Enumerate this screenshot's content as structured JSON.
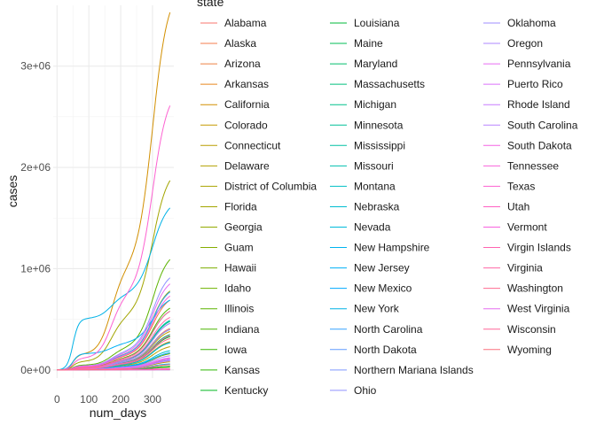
{
  "chart_data": {
    "type": "line",
    "title": "",
    "xlabel": "num_days",
    "ylabel": "cases",
    "xlim": [
      -12,
      367
    ],
    "ylim": [
      -80000,
      3600000
    ],
    "x_ticks": [
      0,
      100,
      200,
      300
    ],
    "x_tick_labels": [
      "0",
      "100",
      "200",
      "300"
    ],
    "y_ticks": [
      0,
      1000000,
      2000000,
      3000000
    ],
    "y_tick_labels": [
      "0e+00",
      "1e+06",
      "2e+06",
      "3e+06"
    ],
    "grid": true,
    "legend_title": "state",
    "legend_position": "right",
    "legend_columns": 3,
    "series": [
      {
        "name": "Alabama",
        "color": "#F8766D",
        "final": 410000
      },
      {
        "name": "Alaska",
        "color": "#F47D4C",
        "final": 52000
      },
      {
        "name": "Arizona",
        "color": "#EE8044",
        "final": 690000
      },
      {
        "name": "Arkansas",
        "color": "#E6861F",
        "final": 280000
      },
      {
        "name": "California",
        "color": "#D28F00",
        "final": 3530000
      },
      {
        "name": "Colorado",
        "color": "#C59900",
        "final": 380000
      },
      {
        "name": "Connecticut",
        "color": "#B99E00",
        "final": 230000
      },
      {
        "name": "Delaware",
        "color": "#B2A100",
        "final": 80000
      },
      {
        "name": "District of Columbia",
        "color": "#AAA300",
        "final": 35000
      },
      {
        "name": "Florida",
        "color": "#A3A500",
        "final": 1870000
      },
      {
        "name": "Georgia",
        "color": "#93AA00",
        "final": 780000
      },
      {
        "name": "Guam",
        "color": "#86AD00",
        "final": 8000
      },
      {
        "name": "Hawaii",
        "color": "#7CAE00",
        "final": 26000
      },
      {
        "name": "Idaho",
        "color": "#6EB200",
        "final": 160000
      },
      {
        "name": "Illinois",
        "color": "#5BB300",
        "final": 1090000
      },
      {
        "name": "Indiana",
        "color": "#4CB600",
        "final": 610000
      },
      {
        "name": "Iowa",
        "color": "#39B600",
        "final": 330000
      },
      {
        "name": "Kansas",
        "color": "#2DB600",
        "final": 270000
      },
      {
        "name": "Kentucky",
        "color": "#00B81F",
        "final": 330000
      },
      {
        "name": "Louisiana",
        "color": "#00BA38",
        "final": 400000
      },
      {
        "name": "Maine",
        "color": "#00BC56",
        "final": 35000
      },
      {
        "name": "Maryland",
        "color": "#00BE6C",
        "final": 350000
      },
      {
        "name": "Massachusetts",
        "color": "#00BF7D",
        "final": 480000
      },
      {
        "name": "Michigan",
        "color": "#00C08B",
        "final": 580000
      },
      {
        "name": "Minnesota",
        "color": "#00C097",
        "final": 460000
      },
      {
        "name": "Mississippi",
        "color": "#00C0A3",
        "final": 270000
      },
      {
        "name": "Missouri",
        "color": "#00BFAE",
        "final": 490000
      },
      {
        "name": "Montana",
        "color": "#00BFC4",
        "final": 95000
      },
      {
        "name": "Nebraska",
        "color": "#00BDD0",
        "final": 190000
      },
      {
        "name": "Nevada",
        "color": "#00BADB",
        "final": 270000
      },
      {
        "name": "New Hampshire",
        "color": "#00B4EF",
        "final": 60000
      },
      {
        "name": "New Jersey",
        "color": "#00B0F6",
        "final": 690000
      },
      {
        "name": "New Mexico",
        "color": "#00A9FF",
        "final": 170000
      },
      {
        "name": "New York",
        "color": "#00B2E6",
        "final": 1600000
      },
      {
        "name": "North Carolina",
        "color": "#35A2FF",
        "final": 770000
      },
      {
        "name": "North Dakota",
        "color": "#619CFF",
        "final": 97000
      },
      {
        "name": "Northern Mariana Islands",
        "color": "#7F96FF",
        "final": 200
      },
      {
        "name": "Ohio",
        "color": "#8F91FF",
        "final": 910000
      },
      {
        "name": "Oklahoma",
        "color": "#9F8CFF",
        "final": 400000
      },
      {
        "name": "Oregon",
        "color": "#AE87FF",
        "final": 140000
      },
      {
        "name": "Pennsylvania",
        "color": "#E76BF3",
        "final": 850000
      },
      {
        "name": "Puerto Rico",
        "color": "#DB72FB",
        "final": 90000
      },
      {
        "name": "Rhode Island",
        "color": "#C77CFF",
        "final": 115000
      },
      {
        "name": "South Carolina",
        "color": "#B983FF",
        "final": 460000
      },
      {
        "name": "South Dakota",
        "color": "#F564E3",
        "final": 107000
      },
      {
        "name": "Tennessee",
        "color": "#FA62DB",
        "final": 730000
      },
      {
        "name": "Texas",
        "color": "#FD61D1",
        "final": 2610000
      },
      {
        "name": "Utah",
        "color": "#FF61C3",
        "final": 340000
      },
      {
        "name": "Vermont",
        "color": "#F863DF",
        "final": 12000
      },
      {
        "name": "Virgin Islands",
        "color": "#FF64B0",
        "final": 2400
      },
      {
        "name": "Virginia",
        "color": "#FF67A4",
        "final": 520000
      },
      {
        "name": "Washington",
        "color": "#FF6C91",
        "final": 310000
      },
      {
        "name": "West Virginia",
        "color": "#E56EF0",
        "final": 120000
      },
      {
        "name": "Wisconsin",
        "color": "#FF6698",
        "final": 580000
      },
      {
        "name": "Wyoming",
        "color": "#FC717F",
        "final": 52000
      }
    ]
  }
}
